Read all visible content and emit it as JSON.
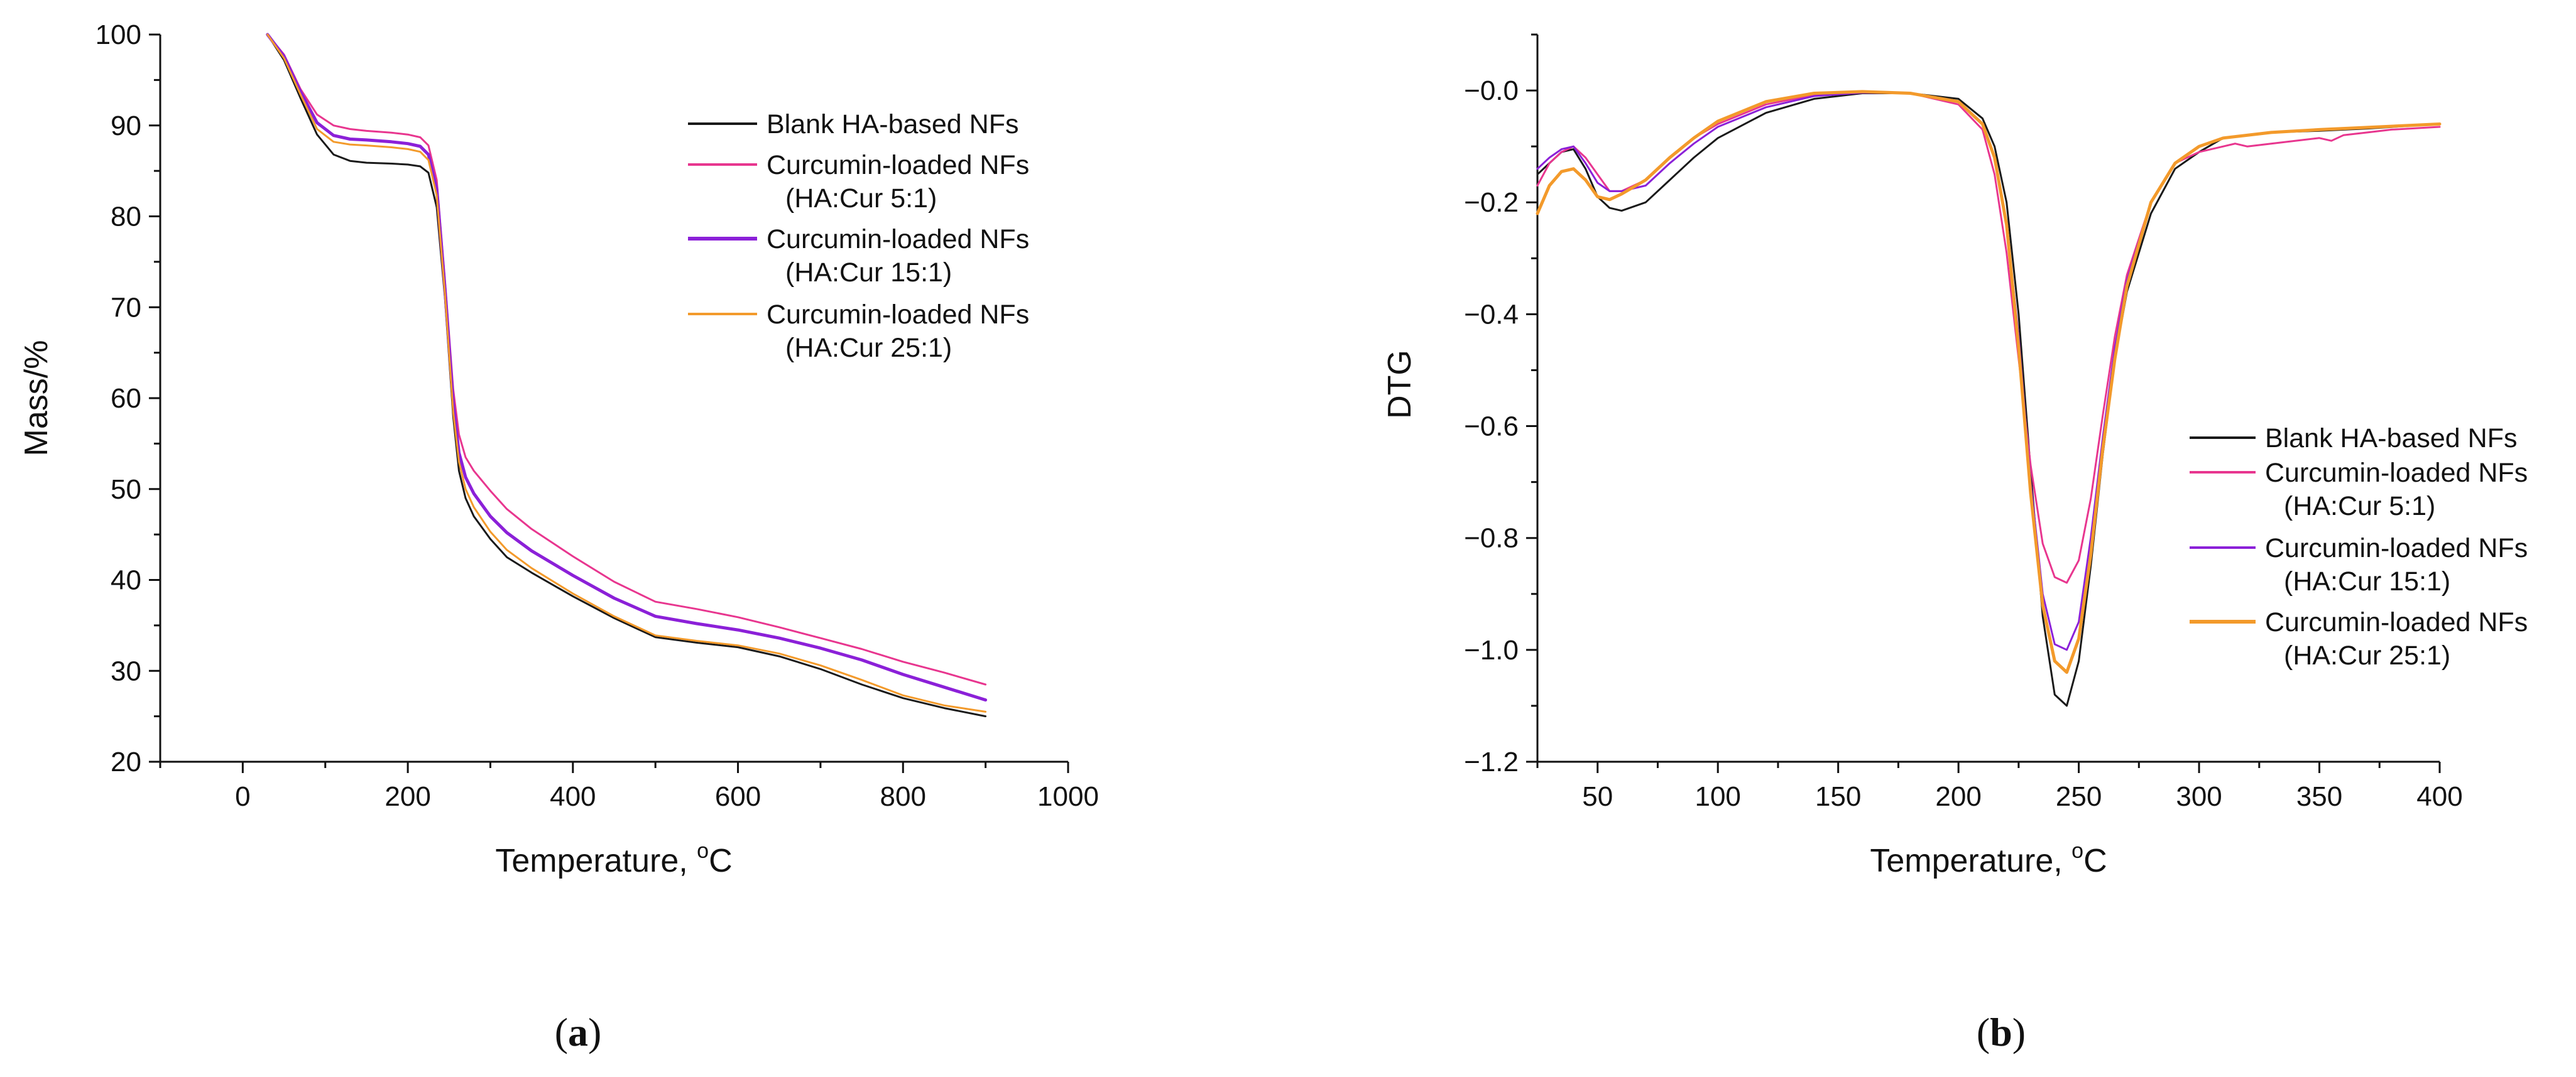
{
  "colors": {
    "blank": "#1a1a1a",
    "cur_5_1": "#e8368f",
    "cur_15_1": "#8b20d8",
    "cur_25_1": "#f39a2b",
    "axis": "#111111"
  },
  "chart_data": [
    {
      "type": "line",
      "panel": "a",
      "caption": {
        "open": "(",
        "letter": "a",
        "close": ")"
      },
      "xlabel": "Temperature, ",
      "xlabel_unit_sup": "o",
      "xlabel_unit": "C",
      "ylabel": "Mass/%",
      "xlim": [
        -100,
        1000
      ],
      "ylim": [
        20,
        100
      ],
      "xticks": [
        0,
        200,
        400,
        600,
        800,
        1000
      ],
      "yticks": [
        20,
        30,
        40,
        50,
        60,
        70,
        80,
        90,
        100
      ],
      "legend_position": "top-right",
      "series": [
        {
          "name": "Blank HA-based NFs",
          "name_line2": "",
          "color_key": "blank",
          "x": [
            30,
            50,
            70,
            90,
            110,
            130,
            150,
            180,
            200,
            215,
            225,
            235,
            245,
            255,
            262,
            270,
            280,
            300,
            320,
            350,
            400,
            450,
            500,
            550,
            600,
            650,
            700,
            750,
            800,
            850,
            900
          ],
          "y": [
            100,
            97.2,
            93,
            89,
            86.8,
            86.1,
            85.9,
            85.8,
            85.7,
            85.5,
            84.8,
            81,
            71,
            58,
            52,
            49,
            47,
            44.5,
            42.5,
            40.8,
            38.2,
            35.8,
            33.7,
            33.1,
            32.6,
            31.6,
            30.2,
            28.5,
            27,
            25.9,
            25
          ]
        },
        {
          "name": "Curcumin-loaded NFs",
          "name_line2": "(HA:Cur 5:1)",
          "color_key": "cur_5_1",
          "x": [
            30,
            50,
            70,
            90,
            110,
            130,
            150,
            180,
            200,
            215,
            225,
            235,
            245,
            255,
            262,
            270,
            280,
            300,
            320,
            350,
            400,
            450,
            500,
            550,
            600,
            650,
            700,
            750,
            800,
            850,
            900
          ],
          "y": [
            100,
            97.8,
            94,
            91.2,
            90,
            89.6,
            89.4,
            89.2,
            89,
            88.7,
            87.8,
            84,
            73,
            61,
            56,
            53.5,
            52,
            49.8,
            47.8,
            45.6,
            42.6,
            39.8,
            37.6,
            36.8,
            35.9,
            34.8,
            33.6,
            32.4,
            31,
            29.8,
            28.5
          ]
        },
        {
          "name": "Curcumin-loaded NFs",
          "name_line2": "(HA:Cur 15:1)",
          "color_key": "cur_15_1",
          "x": [
            30,
            50,
            70,
            90,
            110,
            130,
            150,
            180,
            200,
            215,
            225,
            235,
            245,
            255,
            262,
            270,
            280,
            300,
            320,
            350,
            400,
            450,
            500,
            550,
            600,
            650,
            700,
            750,
            800,
            850,
            900
          ],
          "y": [
            100,
            97.6,
            93.7,
            90.3,
            88.9,
            88.5,
            88.4,
            88.2,
            88,
            87.7,
            86.8,
            83,
            72,
            59.5,
            54,
            51.3,
            49.5,
            47,
            45.2,
            43.2,
            40.5,
            38,
            36,
            35.2,
            34.5,
            33.6,
            32.5,
            31.2,
            29.6,
            28.2,
            26.8
          ]
        },
        {
          "name": "Curcumin-loaded NFs",
          "name_line2": "(HA:Cur 25:1)",
          "color_key": "cur_25_1",
          "x": [
            30,
            50,
            70,
            90,
            110,
            130,
            150,
            180,
            200,
            215,
            225,
            235,
            245,
            255,
            262,
            270,
            280,
            300,
            320,
            350,
            400,
            450,
            500,
            550,
            600,
            650,
            700,
            750,
            800,
            850,
            900
          ],
          "y": [
            100,
            97.4,
            93.4,
            89.6,
            88.2,
            87.9,
            87.8,
            87.6,
            87.4,
            87.1,
            86.2,
            82.3,
            71.5,
            58.5,
            53,
            50,
            48,
            45.3,
            43.3,
            41.3,
            38.5,
            36,
            33.9,
            33.3,
            32.8,
            31.9,
            30.6,
            29,
            27.3,
            26.2,
            25.5
          ]
        }
      ]
    },
    {
      "type": "line",
      "panel": "b",
      "caption": {
        "open": "(",
        "letter": "b",
        "close": ")"
      },
      "xlabel": "Temperature, ",
      "xlabel_unit_sup": "o",
      "xlabel_unit": "C",
      "ylabel": "DTG",
      "xlim": [
        25,
        400
      ],
      "ylim": [
        -1.2,
        0.1
      ],
      "xticks": [
        50,
        100,
        150,
        200,
        250,
        300,
        350,
        400
      ],
      "yticks": [
        -1.2,
        -1.0,
        -0.8,
        -0.6,
        -0.4,
        -0.2,
        0.0
      ],
      "ytick_labels": [
        "−1.2",
        "−1.0",
        "−0.8",
        "−0.6",
        "−0.4",
        "−0.2",
        "−0.0"
      ],
      "legend_position": "right",
      "series": [
        {
          "name": "Blank HA-based NFs",
          "name_line2": "",
          "color_key": "blank",
          "x": [
            25,
            30,
            35,
            40,
            45,
            50,
            55,
            60,
            70,
            80,
            90,
            100,
            120,
            140,
            160,
            180,
            200,
            210,
            215,
            220,
            225,
            230,
            235,
            240,
            245,
            250,
            255,
            260,
            265,
            270,
            280,
            290,
            300,
            310,
            330,
            350,
            370,
            400
          ],
          "y": [
            -0.15,
            -0.13,
            -0.11,
            -0.105,
            -0.14,
            -0.19,
            -0.21,
            -0.215,
            -0.2,
            -0.16,
            -0.12,
            -0.085,
            -0.04,
            -0.015,
            -0.005,
            -0.005,
            -0.015,
            -0.05,
            -0.1,
            -0.2,
            -0.4,
            -0.68,
            -0.94,
            -1.08,
            -1.1,
            -1.02,
            -0.85,
            -0.65,
            -0.48,
            -0.36,
            -0.22,
            -0.14,
            -0.11,
            -0.085,
            -0.075,
            -0.072,
            -0.068,
            -0.06
          ]
        },
        {
          "name": "Curcumin-loaded NFs",
          "name_line2": "(HA:Cur 5:1)",
          "color_key": "cur_5_1",
          "x": [
            25,
            30,
            35,
            40,
            45,
            50,
            55,
            60,
            70,
            80,
            90,
            100,
            120,
            140,
            160,
            180,
            200,
            210,
            215,
            220,
            225,
            230,
            235,
            240,
            245,
            250,
            255,
            260,
            265,
            270,
            280,
            290,
            300,
            310,
            315,
            320,
            330,
            350,
            355,
            360,
            370,
            380,
            400
          ],
          "y": [
            -0.17,
            -0.13,
            -0.11,
            -0.1,
            -0.12,
            -0.15,
            -0.18,
            -0.18,
            -0.16,
            -0.12,
            -0.085,
            -0.06,
            -0.025,
            -0.008,
            -0.003,
            -0.005,
            -0.025,
            -0.07,
            -0.15,
            -0.29,
            -0.48,
            -0.67,
            -0.81,
            -0.87,
            -0.88,
            -0.84,
            -0.73,
            -0.58,
            -0.44,
            -0.33,
            -0.2,
            -0.13,
            -0.11,
            -0.1,
            -0.095,
            -0.1,
            -0.095,
            -0.085,
            -0.09,
            -0.08,
            -0.075,
            -0.07,
            -0.065
          ]
        },
        {
          "name": "Curcumin-loaded NFs",
          "name_line2": "(HA:Cur 15:1)",
          "color_key": "cur_15_1",
          "x": [
            25,
            30,
            35,
            40,
            45,
            50,
            55,
            60,
            70,
            80,
            90,
            100,
            120,
            140,
            160,
            180,
            200,
            210,
            215,
            220,
            225,
            230,
            235,
            240,
            245,
            250,
            255,
            260,
            265,
            270,
            280,
            290,
            300,
            310,
            330,
            350,
            370,
            400
          ],
          "y": [
            -0.14,
            -0.12,
            -0.105,
            -0.1,
            -0.13,
            -0.165,
            -0.18,
            -0.18,
            -0.17,
            -0.13,
            -0.095,
            -0.065,
            -0.03,
            -0.01,
            -0.004,
            -0.005,
            -0.02,
            -0.06,
            -0.12,
            -0.24,
            -0.44,
            -0.7,
            -0.9,
            -0.99,
            -1.0,
            -0.95,
            -0.8,
            -0.62,
            -0.46,
            -0.34,
            -0.2,
            -0.13,
            -0.1,
            -0.085,
            -0.075,
            -0.07,
            -0.066,
            -0.06
          ]
        },
        {
          "name": "Curcumin-loaded NFs",
          "name_line2": "(HA:Cur 25:1)",
          "color_key": "cur_25_1",
          "x": [
            25,
            30,
            35,
            40,
            45,
            50,
            55,
            60,
            70,
            80,
            90,
            100,
            120,
            140,
            160,
            180,
            200,
            210,
            215,
            220,
            225,
            230,
            235,
            240,
            245,
            250,
            255,
            260,
            265,
            270,
            280,
            290,
            300,
            310,
            330,
            350,
            370,
            400
          ],
          "y": [
            -0.22,
            -0.17,
            -0.145,
            -0.14,
            -0.16,
            -0.19,
            -0.195,
            -0.185,
            -0.16,
            -0.12,
            -0.085,
            -0.055,
            -0.02,
            -0.005,
            -0.002,
            -0.005,
            -0.02,
            -0.06,
            -0.12,
            -0.24,
            -0.46,
            -0.72,
            -0.92,
            -1.02,
            -1.04,
            -0.98,
            -0.83,
            -0.64,
            -0.48,
            -0.35,
            -0.2,
            -0.13,
            -0.1,
            -0.085,
            -0.075,
            -0.07,
            -0.066,
            -0.06
          ]
        }
      ]
    }
  ]
}
